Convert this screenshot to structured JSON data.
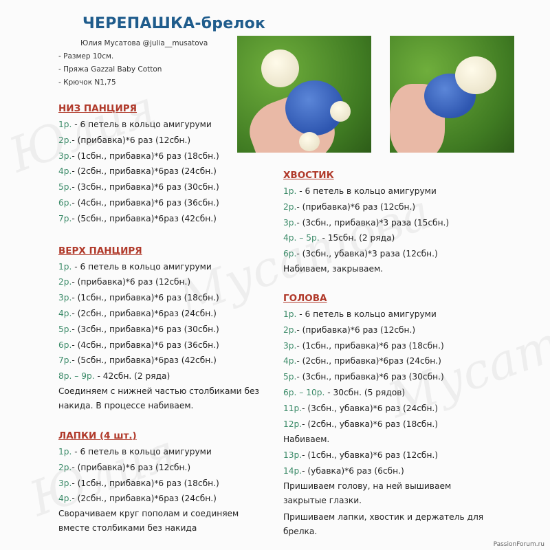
{
  "title": "ЧЕРЕПАШКА-брелок",
  "meta": {
    "author": "Юлия Мусатова  @julia__musatova",
    "size": "- Размер 10см.",
    "yarn": "- Пряжа Gazzal Baby Cotton",
    "hook": "- Крючок  N1,75"
  },
  "sections": {
    "bottom": {
      "heading": "НИЗ ПАНЦИРЯ",
      "rows": [
        {
          "n": "1р.",
          "t": " - 6 петель в кольцо амигуруми"
        },
        {
          "n": "2р.",
          "t": "- (прибавка)*6 раз (12сбн.)"
        },
        {
          "n": "3р.",
          "t": "- (1сбн., прибавка)*6 раз (18сбн.)"
        },
        {
          "n": "4р.",
          "t": "- (2сбн., прибавка)*6раз (24сбн.)"
        },
        {
          "n": "5р.",
          "t": "- (3сбн., прибавка)*6 раз (30сбн.)"
        },
        {
          "n": "6р.",
          "t": "- (4сбн., прибавка)*6 раз (36сбн.)"
        },
        {
          "n": "7р.",
          "t": "- (5сбн., прибавка)*6раз (42сбн.)"
        }
      ]
    },
    "top": {
      "heading": "ВЕРХ ПАНЦИРЯ",
      "rows": [
        {
          "n": "1р.",
          "t": " - 6 петель в кольцо амигуруми"
        },
        {
          "n": "2р.",
          "t": "- (прибавка)*6 раз (12сбн.)"
        },
        {
          "n": "3р.",
          "t": "- (1сбн., прибавка)*6 раз (18сбн.)"
        },
        {
          "n": "4р.",
          "t": "- (2сбн., прибавка)*6раз (24сбн.)"
        },
        {
          "n": "5р.",
          "t": "- (3сбн., прибавка)*6 раз (30сбн.)"
        },
        {
          "n": "6р.",
          "t": "- (4сбн., прибавка)*6 раз (36сбн.)"
        },
        {
          "n": "7р.",
          "t": "- (5сбн., прибавка)*6раз (42сбн.)"
        },
        {
          "n": "8р. – 9р.",
          "t": " - 42сбн. (2 ряда)"
        }
      ],
      "notes": [
        "Соединяем  с нижней  частью столбиками  без",
        "накида. В процессе  набиваем."
      ]
    },
    "legs": {
      "heading": "ЛАПКИ (4 шт.)",
      "rows": [
        {
          "n": "1р.",
          "t": " - 6 петель в кольцо амигуруми"
        },
        {
          "n": "2р.",
          "t": "- (прибавка)*6 раз (12сбн.)"
        },
        {
          "n": "3р.",
          "t": "- (1сбн., прибавка)*6 раз (18сбн.)"
        },
        {
          "n": "4р.",
          "t": "- (2сбн., прибавка)*6раз (24сбн.)"
        }
      ],
      "notes": [
        "Сворачиваем круг пополам и соединяем",
        "вместе столбиками без накида"
      ]
    },
    "tail": {
      "heading": "ХВОСТИК",
      "rows": [
        {
          "n": "1р.",
          "t": " - 6 петель в кольцо амигуруми"
        },
        {
          "n": "2р.",
          "t": "- (прибавка)*6 раз (12сбн.)"
        },
        {
          "n": "3р.",
          "t": "- (3сбн., прибавка)*3 раза (15сбн.)"
        },
        {
          "n": "4р. – 5р.",
          "t": " - 15сбн. (2 ряда)"
        },
        {
          "n": "6р.",
          "t": "- (3сбн., убавка)*3 раза (12сбн.)"
        }
      ],
      "notes": [
        "Набиваем, закрываем."
      ]
    },
    "head": {
      "heading": "ГОЛОВА",
      "rows": [
        {
          "n": "1р.",
          "t": " - 6 петель в кольцо амигуруми"
        },
        {
          "n": "2р.",
          "t": "- (прибавка)*6 раз (12сбн.)"
        },
        {
          "n": "3р.",
          "t": "- (1сбн., прибавка)*6 раз (18сбн.)"
        },
        {
          "n": "4р.",
          "t": "- (2сбн., прибавка)*6раз (24сбн.)"
        },
        {
          "n": "5р.",
          "t": "- (3сбн., прибавка)*6 раз (30сбн.)"
        },
        {
          "n": "6р. – 10р.",
          "t": " - 30сбн. (5 рядов)"
        },
        {
          "n": "11р.",
          "t": "- (3сбн., убавка)*6 раз (24сбн.)"
        },
        {
          "n": "12р.",
          "t": "- (2сбн., убавка)*6 раз (18сбн.)"
        }
      ],
      "mid_note": "Набиваем.",
      "rows2": [
        {
          "n": "13р.",
          "t": "- (1сбн., убавка)*6 раз (12сбн.)"
        },
        {
          "n": "14р.",
          "t": "- (убавка)*6 раз (6сбн.)"
        }
      ],
      "notes": [
        "Пришиваем голову, на ней вышиваем",
        "закрытые глазки.",
        "Пришиваем лапки, хвостик и держатель для",
        "брелка."
      ]
    }
  },
  "footer": "PassionForum.ru",
  "colors": {
    "title": "#1f5c8c",
    "heading": "#b0392a",
    "row_number": "#3b8a68"
  }
}
